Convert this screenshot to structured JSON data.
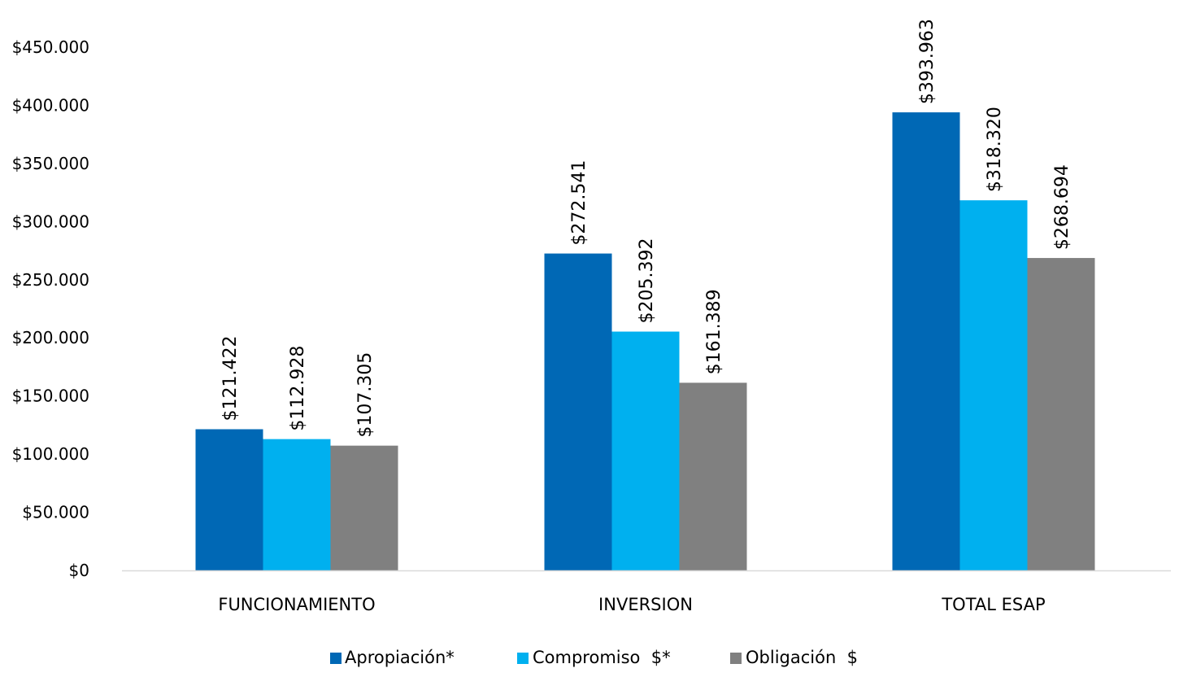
{
  "chart_data": {
    "type": "bar",
    "categories": [
      "FUNCIONAMIENTO",
      "INVERSION",
      "TOTAL ESAP"
    ],
    "series": [
      {
        "name": "Apropiación*",
        "color": "#0068B5",
        "values": [
          121422,
          272541,
          393963
        ],
        "labels": [
          "$121.422",
          "$272.541",
          "$393.963"
        ]
      },
      {
        "name": "Compromiso  $*",
        "color": "#00B0EF",
        "values": [
          112928,
          205392,
          318320
        ],
        "labels": [
          "$112.928",
          "$205.392",
          "$318.320"
        ]
      },
      {
        "name": "Obligación  $",
        "color": "#808080",
        "values": [
          107305,
          161389,
          268694
        ],
        "labels": [
          "$107.305",
          "$161.389",
          "$268.694"
        ]
      }
    ],
    "ylim": [
      0,
      450000
    ],
    "yticks": [
      {
        "value": 0,
        "label": "$0"
      },
      {
        "value": 50000,
        "label": "$50.000"
      },
      {
        "value": 100000,
        "label": "$100.000"
      },
      {
        "value": 150000,
        "label": "$150.000"
      },
      {
        "value": 200000,
        "label": "$200.000"
      },
      {
        "value": 250000,
        "label": "$250.000"
      },
      {
        "value": 300000,
        "label": "$300.000"
      },
      {
        "value": 350000,
        "label": "$350.000"
      },
      {
        "value": 400000,
        "label": "$400.000"
      },
      {
        "value": 450000,
        "label": "$450.000"
      }
    ],
    "grid": false,
    "legend_position": "bottom",
    "data_labels_rotated": true,
    "axis_color": "#D9D9D9"
  }
}
